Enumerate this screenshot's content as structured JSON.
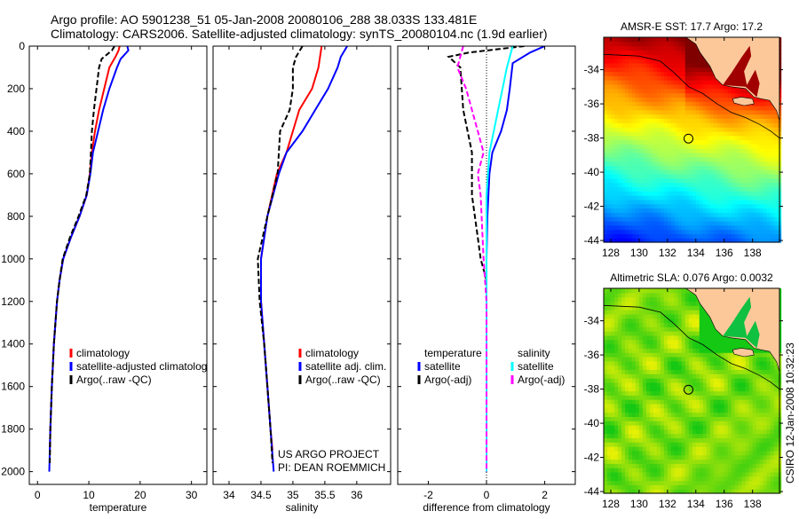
{
  "title_line1": "Argo profile: AO 5901238_51 05-Jan-2008 20080106_288 38.033S 133.481E",
  "title_line2": "Climatology: CARS2006. Satellite-adjusted climatology: synTS_20080104.nc (1.9d earlier)",
  "credits": {
    "project": "US ARGO PROJECT",
    "pi": "PI: DEAN ROEMMICH",
    "stamp": "CSIRO 12-Jan-2008 10:32:23"
  },
  "colors": {
    "climatology": "#ff0000",
    "satellite": "#0000ff",
    "argo": "#000000",
    "sal_satellite": "#00ffff",
    "sal_argo": "#ff00ff",
    "land": "#fcc89a"
  },
  "chart_data": [
    {
      "type": "line",
      "id": "temperature",
      "xlabel": "temperature",
      "ylabel": "",
      "xlim": [
        -1.6,
        33
      ],
      "ylim": [
        2060,
        0
      ],
      "xticks": [
        0,
        10,
        20,
        30
      ],
      "yticks": [
        0,
        200,
        400,
        600,
        800,
        1000,
        1200,
        1400,
        1600,
        1800,
        2000
      ],
      "legend": [
        "climatology",
        "satellite-adjusted climatology",
        "Argo(..raw -QC)"
      ],
      "series": [
        {
          "name": "climatology",
          "color": "#ff0000",
          "dash": false,
          "depth": [
            0,
            20,
            50,
            100,
            200,
            300,
            400,
            500,
            600,
            700,
            800,
            900,
            1000,
            1100,
            1200,
            1400,
            1600,
            1800,
            1900
          ],
          "values": [
            16,
            15.8,
            15.2,
            14,
            13,
            12,
            11.2,
            10.6,
            10.2,
            9.6,
            8.2,
            6.5,
            5,
            4.3,
            3.8,
            3.2,
            2.8,
            2.5,
            2.4
          ]
        },
        {
          "name": "satellite-adjusted climatology",
          "color": "#0000ff",
          "dash": false,
          "depth": [
            0,
            20,
            60,
            100,
            200,
            300,
            400,
            500,
            600,
            700,
            800,
            900,
            1000,
            1100,
            1200,
            1400,
            1600,
            1800,
            2000
          ],
          "values": [
            17.5,
            17.7,
            16.2,
            15.5,
            14,
            12.8,
            11.8,
            10.8,
            10.3,
            9.6,
            8.2,
            6.5,
            5,
            4.3,
            3.8,
            3.2,
            2.8,
            2.5,
            2.3
          ]
        },
        {
          "name": "Argo(..raw -QC)",
          "color": "#000000",
          "dash": true,
          "depth": [
            0,
            20,
            40,
            60,
            100,
            200,
            300,
            400,
            500,
            600,
            700,
            800,
            900,
            1000,
            1100,
            1200,
            1400,
            1600,
            1800,
            1960
          ],
          "values": [
            15,
            14.5,
            13.5,
            12.5,
            12,
            11.5,
            11,
            10.6,
            10.4,
            10.2,
            9.5,
            8,
            6.3,
            4.9,
            4.3,
            3.8,
            3.2,
            2.8,
            2.5,
            2.4
          ]
        }
      ]
    },
    {
      "type": "line",
      "id": "salinity",
      "xlabel": "salinity",
      "ylabel": "",
      "xlim": [
        33.75,
        36.53
      ],
      "ylim": [
        2060,
        0
      ],
      "xticks": [
        34,
        34.5,
        35,
        35.5,
        36
      ],
      "yticks": [
        0,
        200,
        400,
        600,
        800,
        1000,
        1200,
        1400,
        1600,
        1800,
        2000
      ],
      "legend": [
        "climatology",
        "satellite adj. clim.",
        "Argo(..raw -QC)"
      ],
      "series": [
        {
          "name": "climatology",
          "color": "#ff0000",
          "dash": false,
          "depth": [
            0,
            100,
            200,
            300,
            400,
            500,
            600,
            800,
            1000,
            1200,
            1400,
            1600,
            1800,
            1900
          ],
          "values": [
            35.45,
            35.4,
            35.3,
            35.1,
            35.0,
            34.9,
            34.75,
            34.6,
            34.5,
            34.5,
            34.55,
            34.6,
            34.65,
            34.68
          ]
        },
        {
          "name": "satellite adj. clim.",
          "color": "#0000ff",
          "dash": false,
          "depth": [
            0,
            50,
            100,
            200,
            300,
            400,
            500,
            600,
            800,
            1000,
            1200,
            1400,
            1600,
            1800,
            2000
          ],
          "values": [
            35.85,
            35.75,
            35.7,
            35.55,
            35.35,
            35.15,
            34.9,
            34.78,
            34.6,
            34.5,
            34.5,
            34.55,
            34.6,
            34.65,
            34.7
          ]
        },
        {
          "name": "Argo(..raw -QC)",
          "color": "#000000",
          "dash": true,
          "depth": [
            0,
            50,
            100,
            200,
            300,
            400,
            500,
            600,
            800,
            1000,
            1200,
            1400,
            1600,
            1800,
            1960
          ],
          "values": [
            35.15,
            35.05,
            35.0,
            35.0,
            34.95,
            34.8,
            34.78,
            34.76,
            34.6,
            34.45,
            34.48,
            34.55,
            34.6,
            34.65,
            34.68
          ]
        }
      ]
    },
    {
      "type": "line",
      "id": "difference",
      "xlabel": "difference from climatology",
      "ylabel": "",
      "xlim": [
        -3.05,
        3.05
      ],
      "ylim": [
        2060,
        0
      ],
      "xticks": [
        -2,
        0,
        2
      ],
      "yticks": [
        0,
        200,
        400,
        600,
        800,
        1000,
        1200,
        1400,
        1600,
        1800,
        2000
      ],
      "legend_headers": [
        "temperature",
        "salinity"
      ],
      "legend": [
        "satellite",
        "Argo(-adj)",
        "satellite",
        "Argo(-adj)"
      ],
      "series": [
        {
          "name": "temperature satellite",
          "color": "#0000ff",
          "dash": false,
          "depth": [
            0,
            30,
            80,
            200,
            300,
            400,
            500,
            600,
            800,
            1000,
            2000
          ],
          "values": [
            2,
            1.5,
            0.9,
            0.8,
            0.7,
            0.5,
            0.2,
            0.1,
            0.03,
            0,
            0
          ]
        },
        {
          "name": "temperature Argo(-adj)",
          "color": "#000000",
          "dash": true,
          "depth": [
            0,
            30,
            50,
            100,
            300,
            500,
            700,
            900,
            1000,
            1100,
            2000
          ],
          "values": [
            1.3,
            -0.6,
            -1.3,
            -0.9,
            -0.8,
            -0.5,
            -0.5,
            -0.3,
            -0.2,
            0,
            0
          ]
        },
        {
          "name": "salinity satellite",
          "color": "#00ffff",
          "dash": false,
          "depth": [
            0,
            100,
            300,
            500,
            700,
            2000
          ],
          "values": [
            0.9,
            0.7,
            0.4,
            0.1,
            0,
            0
          ]
        },
        {
          "name": "salinity Argo(-adj)",
          "color": "#ff00ff",
          "dash": true,
          "depth": [
            0,
            50,
            100,
            200,
            300,
            400,
            500,
            600,
            700,
            1000,
            1200,
            2000
          ],
          "values": [
            -0.8,
            -0.9,
            -1,
            -0.7,
            -0.5,
            -0.3,
            -0.1,
            -0.3,
            -0.2,
            -0.1,
            0,
            0
          ]
        }
      ]
    },
    {
      "type": "heatmap",
      "id": "sst_map",
      "title": "AMSR-E SST: 17.7 Argo: 17.2",
      "xlim": [
        127.5,
        139.9
      ],
      "ylim": [
        -44.1,
        -32.1
      ],
      "xticks": [
        128,
        130,
        132,
        134,
        136,
        138
      ],
      "yticks": [
        -34,
        -36,
        -38,
        -40,
        -42,
        -44
      ],
      "marker": {
        "lon": 133.481,
        "lat": -38.033
      }
    },
    {
      "type": "heatmap",
      "id": "sla_map",
      "title": "Altimetric SLA: 0.076 Argo: 0.0032",
      "xlim": [
        127.5,
        139.9
      ],
      "ylim": [
        -44.1,
        -32.1
      ],
      "xticks": [
        128,
        130,
        132,
        134,
        136,
        138
      ],
      "yticks": [
        -34,
        -36,
        -38,
        -40,
        -42,
        -44
      ],
      "marker": {
        "lon": 133.481,
        "lat": -38.033
      }
    }
  ]
}
